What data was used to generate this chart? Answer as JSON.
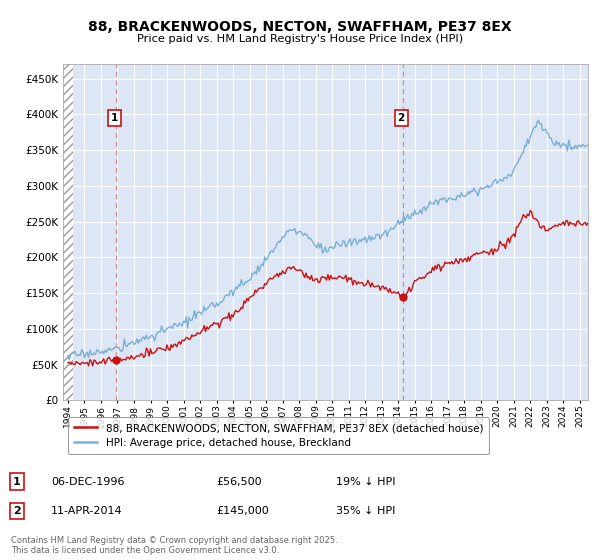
{
  "title": "88, BRACKENWOODS, NECTON, SWAFFHAM, PE37 8EX",
  "subtitle": "Price paid vs. HM Land Registry's House Price Index (HPI)",
  "ytick_vals": [
    0,
    50000,
    100000,
    150000,
    200000,
    250000,
    300000,
    350000,
    400000,
    450000
  ],
  "xlim": [
    1993.7,
    2025.5
  ],
  "ylim": [
    0,
    470000
  ],
  "hatch_x_start": 1993.7,
  "hatch_x_end": 1994.3,
  "point1": {
    "year": 1996.92,
    "price": 56500,
    "label": "1"
  },
  "point2": {
    "year": 2014.28,
    "price": 145000,
    "label": "2"
  },
  "vline1_x": 1996.92,
  "vline2_x": 2014.28,
  "legend_label_red": "88, BRACKENWOODS, NECTON, SWAFFHAM, PE37 8EX (detached house)",
  "legend_label_blue": "HPI: Average price, detached house, Breckland",
  "footnote": "Contains HM Land Registry data © Crown copyright and database right 2025.\nThis data is licensed under the Open Government Licence v3.0.",
  "table_rows": [
    {
      "num": "1",
      "date": "06-DEC-1996",
      "price": "£56,500",
      "pct": "19% ↓ HPI"
    },
    {
      "num": "2",
      "date": "11-APR-2014",
      "price": "£145,000",
      "pct": "35% ↓ HPI"
    }
  ],
  "bg_color": "#dce6f5",
  "red_color": "#cc1111",
  "blue_color": "#7bafd4",
  "grid_color": "#ffffff",
  "vline_color": "#dd8888"
}
